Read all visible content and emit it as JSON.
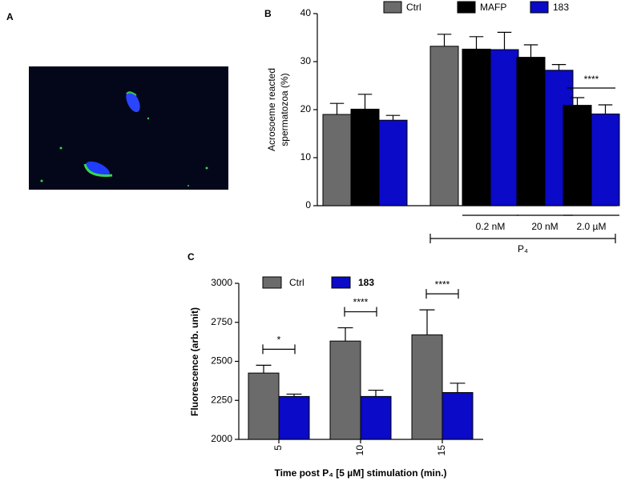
{
  "panel_labels": [
    "A",
    "B",
    "C"
  ],
  "chart_data": [
    {
      "type": "bar",
      "ylabel": [
        "Acrosoeme reacted",
        "spermatozoa (%)"
      ],
      "categories": [
        null,
        null,
        "0.2 nM",
        "20 nM",
        "2.0 µM"
      ],
      "group_label": "P₄",
      "series": [
        {
          "name": "Ctrl",
          "color": "#6b6b6b",
          "values": [
            19.0,
            33.2,
            null,
            null,
            null
          ],
          "errors": [
            2.3,
            2.5,
            null,
            null,
            null
          ]
        },
        {
          "name": "MAFP",
          "color": "#000000",
          "values": [
            20.1,
            null,
            32.6,
            30.9,
            20.9
          ],
          "errors": [
            3.1,
            null,
            2.6,
            2.6,
            1.6
          ]
        },
        {
          "name": "183",
          "color": "#0a0ac8",
          "values": [
            17.8,
            null,
            32.5,
            28.2,
            19.1
          ],
          "errors": [
            1.0,
            null,
            3.6,
            1.2,
            1.9
          ]
        }
      ],
      "significance": [
        null,
        null,
        null,
        null,
        "****"
      ],
      "ylim": [
        0,
        40
      ],
      "yticks": [
        0,
        10,
        20,
        30,
        40
      ]
    },
    {
      "type": "bar",
      "ylabel": "Fluorescence (arb. unit)",
      "xlabel": "Time post P₄ [5 µM]  stimulation (min.)",
      "categories": [
        "5",
        "10",
        "15"
      ],
      "series": [
        {
          "name": "Ctrl",
          "color": "#6b6b6b",
          "values": [
            2425,
            2630,
            2670
          ],
          "errors": [
            50,
            85,
            160
          ]
        },
        {
          "name": "183",
          "color": "#0a0ac8",
          "values": [
            2275,
            2275,
            2300
          ],
          "errors": [
            15,
            40,
            60
          ]
        }
      ],
      "significance": [
        "*",
        "****",
        "****"
      ],
      "ylim": [
        2000,
        3000
      ],
      "yticks": [
        2000,
        2250,
        2500,
        2750,
        3000
      ]
    }
  ]
}
